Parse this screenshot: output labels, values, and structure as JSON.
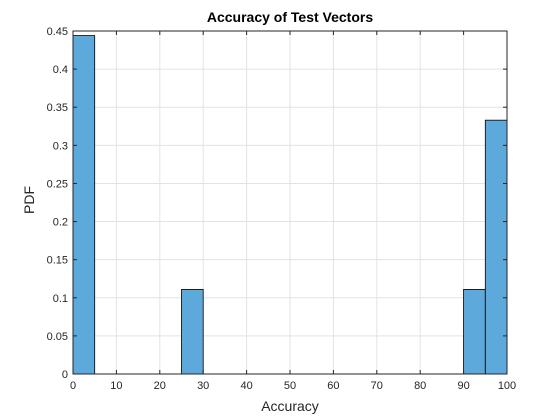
{
  "chart_data": {
    "type": "bar",
    "title": "Accuracy of Test Vectors",
    "xlabel": "Accuracy",
    "ylabel": "PDF",
    "xlim": [
      0,
      100
    ],
    "ylim": [
      0,
      0.45
    ],
    "grid": true,
    "bin_width": 5,
    "bins": [
      {
        "x0": 0,
        "x1": 5,
        "value": 0.444
      },
      {
        "x0": 25,
        "x1": 30,
        "value": 0.111
      },
      {
        "x0": 90,
        "x1": 95,
        "value": 0.111
      },
      {
        "x0": 95,
        "x1": 100,
        "value": 0.333
      }
    ],
    "x_ticks": [
      0,
      10,
      20,
      30,
      40,
      50,
      60,
      70,
      80,
      90,
      100
    ],
    "y_ticks": [
      0,
      0.05,
      0.1,
      0.15,
      0.2,
      0.25,
      0.3,
      0.35,
      0.4,
      0.45
    ],
    "y_tick_labels": [
      "0",
      "0.05",
      "0.1",
      "0.15",
      "0.2",
      "0.25",
      "0.3",
      "0.35",
      "0.4",
      "0.45"
    ],
    "colors": {
      "bar_fill": "#5ea9dc",
      "bar_edge": "#000000",
      "grid": "#e3e3e3",
      "axis": "#262626"
    }
  }
}
